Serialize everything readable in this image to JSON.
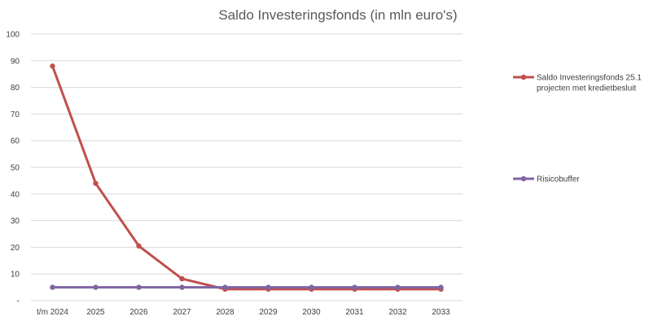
{
  "chart_data": {
    "type": "line",
    "title": "Saldo Investeringsfonds (in mln euro's)",
    "xlabel": "",
    "ylabel": "",
    "categories": [
      "t/m 2024",
      "2025",
      "2026",
      "2027",
      "2028",
      "2029",
      "2030",
      "2031",
      "2032",
      "2033"
    ],
    "yticks": [
      "-",
      "10",
      "20",
      "30",
      "40",
      "50",
      "60",
      "70",
      "80",
      "90",
      "100"
    ],
    "ylim": [
      0,
      100
    ],
    "grid": true,
    "legend_position": "right",
    "series": [
      {
        "name_lines": [
          "Saldo Investeringsfonds 25.1",
          "projecten met kredietbesluit"
        ],
        "color": "#c0504d",
        "values": [
          88.0,
          44.0,
          20.5,
          8.2,
          4.3,
          4.3,
          4.3,
          4.3,
          4.3,
          4.3
        ]
      },
      {
        "name_lines": [
          "Risicobuffer"
        ],
        "color": "#8064a2",
        "values": [
          5.0,
          5.0,
          5.0,
          5.0,
          5.0,
          5.0,
          5.0,
          5.0,
          5.0,
          5.0
        ]
      }
    ]
  }
}
